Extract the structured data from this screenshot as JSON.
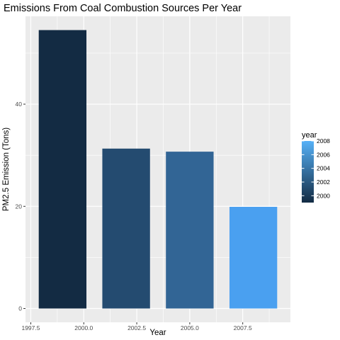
{
  "chart_data": {
    "type": "bar",
    "title": "Emissions From Coal Combustion Sources Per Year",
    "xlabel": "Year",
    "ylabel": "PM2.5 Emission (Tons)",
    "x": [
      1999,
      2002,
      2005,
      2008
    ],
    "values": [
      54.5,
      31.3,
      30.7,
      19.9
    ],
    "xlim": [
      1997.25,
      2009.75
    ],
    "ylim": [
      -2.7,
      57.2
    ],
    "xticks": [
      1997.5,
      2000.0,
      2002.5,
      2005.0,
      2007.5
    ],
    "xtick_labels": [
      "1997.5",
      "2000.0",
      "2002.5",
      "2005.0",
      "2007.5"
    ],
    "yticks": [
      0,
      20,
      40
    ],
    "ytick_labels": [
      "0",
      "20",
      "40"
    ],
    "bar_width": 2.25,
    "grid": true,
    "panel_background": "#ebebeb",
    "legend": {
      "title": "year",
      "position": "right",
      "ticks": [
        2000,
        2002,
        2004,
        2006,
        2008
      ],
      "tick_labels": [
        "2000",
        "2002",
        "2004",
        "2006",
        "2008"
      ],
      "range": [
        1999,
        2008
      ],
      "gradient_low": "#132b43",
      "gradient_high": "#56b1f7"
    },
    "bar_colors": [
      "#132b43",
      "#244b70",
      "#326595",
      "#4aa0f0"
    ]
  }
}
